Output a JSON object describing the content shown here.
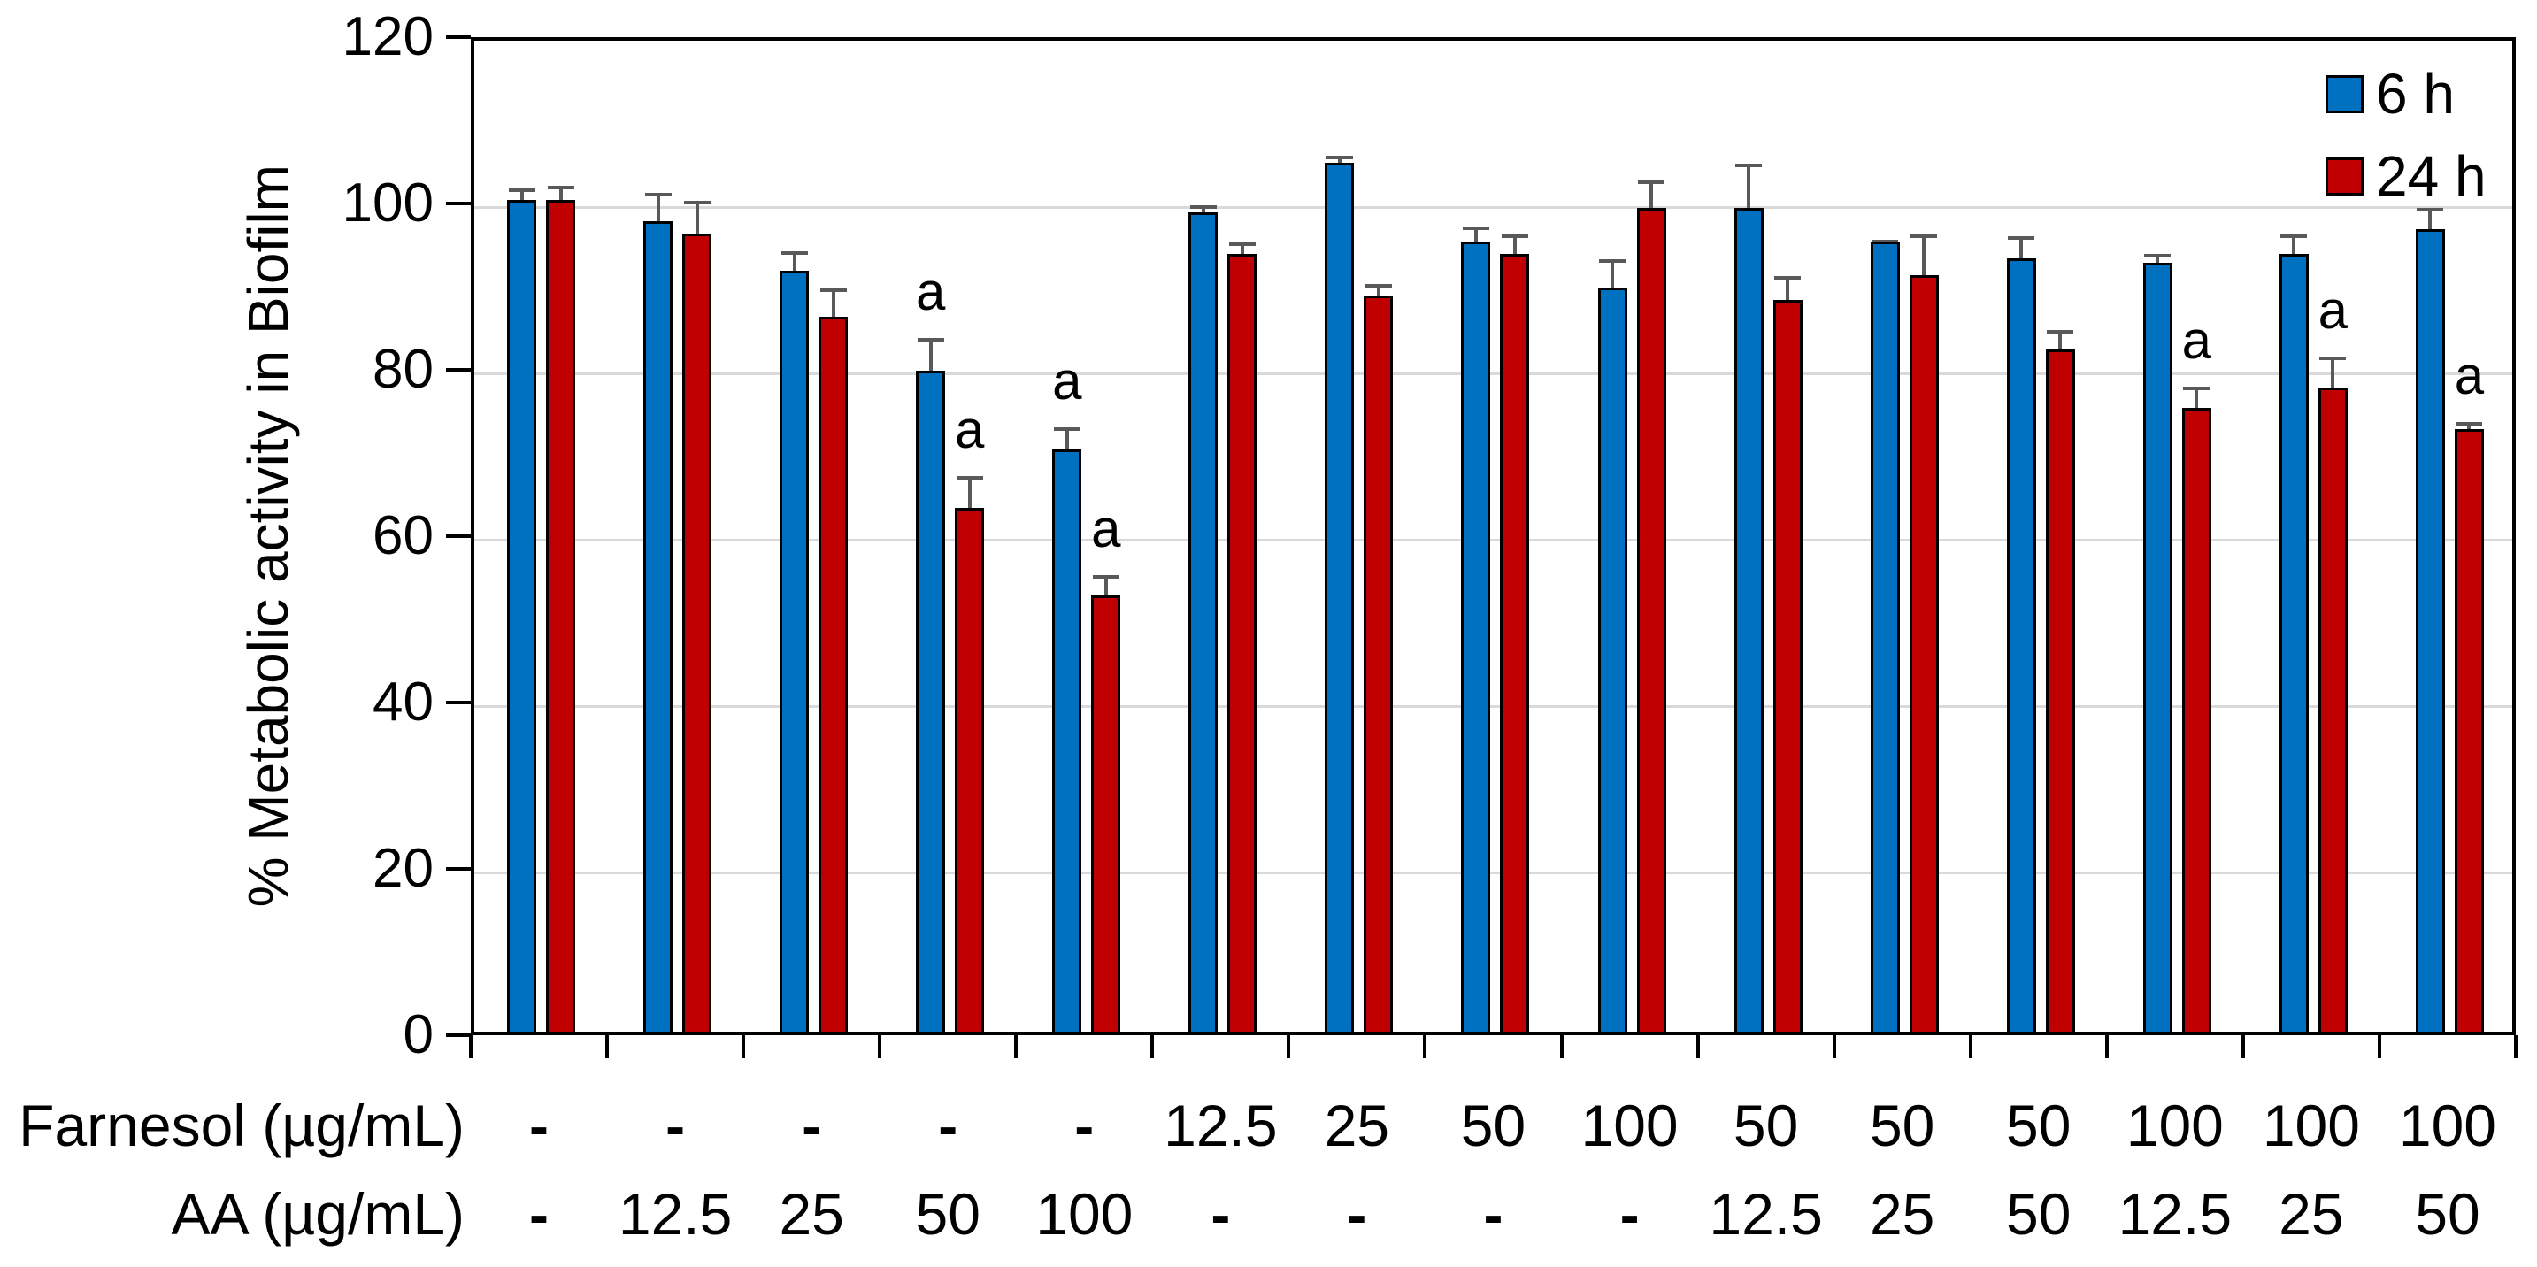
{
  "chart_data": {
    "type": "bar",
    "title": "",
    "ylabel": "% Metabolic activity in Biofilm",
    "ylim": [
      0,
      120
    ],
    "yticks": [
      0,
      20,
      40,
      60,
      80,
      100,
      120
    ],
    "grid": "horizontal",
    "legend_position": "top-right-inside",
    "annotation_symbol": "a",
    "colors": {
      "series_6h": "#0070C0",
      "series_24h": "#C00000",
      "error_bar": "#595959",
      "gridline": "#D9D9D9",
      "frame": "#000000"
    },
    "x_axis_rows": [
      {
        "label": "Farnesol (µg/mL)",
        "values": [
          "-",
          "-",
          "-",
          "-",
          "-",
          "12.5",
          "25",
          "50",
          "100",
          "50",
          "50",
          "50",
          "100",
          "100",
          "100"
        ]
      },
      {
        "label": "AA (µg/mL)",
        "values": [
          "-",
          "12.5",
          "25",
          "50",
          "100",
          "-",
          "-",
          "-",
          "-",
          "12.5",
          "25",
          "50",
          "12.5",
          "25",
          "50"
        ]
      }
    ],
    "series": [
      {
        "name": "6 h",
        "color": "#0070C0",
        "values": [
          100,
          97.5,
          91.5,
          79.5,
          70,
          98.5,
          104.5,
          95,
          89.5,
          99,
          95,
          93,
          92.5,
          93.5,
          96.5
        ],
        "errors": [
          2,
          4,
          3,
          4.5,
          3.3,
          1.5,
          1.5,
          2.5,
          4,
          6,
          0.8,
          3.3,
          1.7,
          3,
          3.2
        ],
        "annotations": [
          "",
          "",
          "",
          "a",
          "a",
          "",
          "",
          "",
          "",
          "",
          "",
          "",
          "",
          "",
          ""
        ]
      },
      {
        "name": "24 h",
        "color": "#C00000",
        "values": [
          100,
          96,
          86,
          63,
          52.5,
          93.5,
          88.5,
          93.5,
          99,
          88,
          91,
          82,
          75,
          77.5,
          72.5
        ],
        "errors": [
          2.3,
          4.5,
          4,
          4.5,
          3,
          2,
          2,
          3,
          4,
          3.5,
          5.5,
          3,
          3.2,
          4.3,
          1.4
        ],
        "annotations": [
          "",
          "",
          "",
          "a",
          "a",
          "",
          "",
          "",
          "",
          "",
          "",
          "",
          "a",
          "a",
          "a"
        ]
      }
    ]
  }
}
